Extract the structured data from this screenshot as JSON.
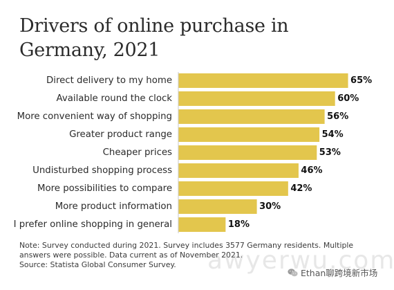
{
  "title_lines": [
    "Drivers of online purchase in",
    "Germany, 2021"
  ],
  "chart_data": {
    "type": "bar",
    "orientation": "horizontal",
    "title": "Drivers of online purchase in Germany, 2021",
    "categories": [
      "Direct delivery to my home",
      "Available round the clock",
      "More convenient way of shopping",
      "Greater product range",
      "Cheaper prices",
      "Undisturbed shopping process",
      "More possibilities to compare",
      "More product information",
      "I prefer online shopping in general"
    ],
    "values": [
      65,
      60,
      56,
      54,
      53,
      46,
      42,
      30,
      18
    ],
    "value_labels": [
      "65%",
      "60%",
      "56%",
      "54%",
      "53%",
      "46%",
      "42%",
      "30%",
      "18%"
    ],
    "unit": "%",
    "xlim": [
      0,
      100
    ],
    "grid": false,
    "legend": "none",
    "bar_color": "#e3c64d"
  },
  "notes": [
    "Note: Survey conducted during 2021. Survey includes 3577 Germany residents. Multiple",
    "answers were possible. Data current as of November 2021.",
    "Source: Statista Global Consumer Survey."
  ],
  "watermark_text": "awyerwu.com",
  "wechat_label": "Ethan聊跨境新市场",
  "wechat_icon": "wechat-icon"
}
